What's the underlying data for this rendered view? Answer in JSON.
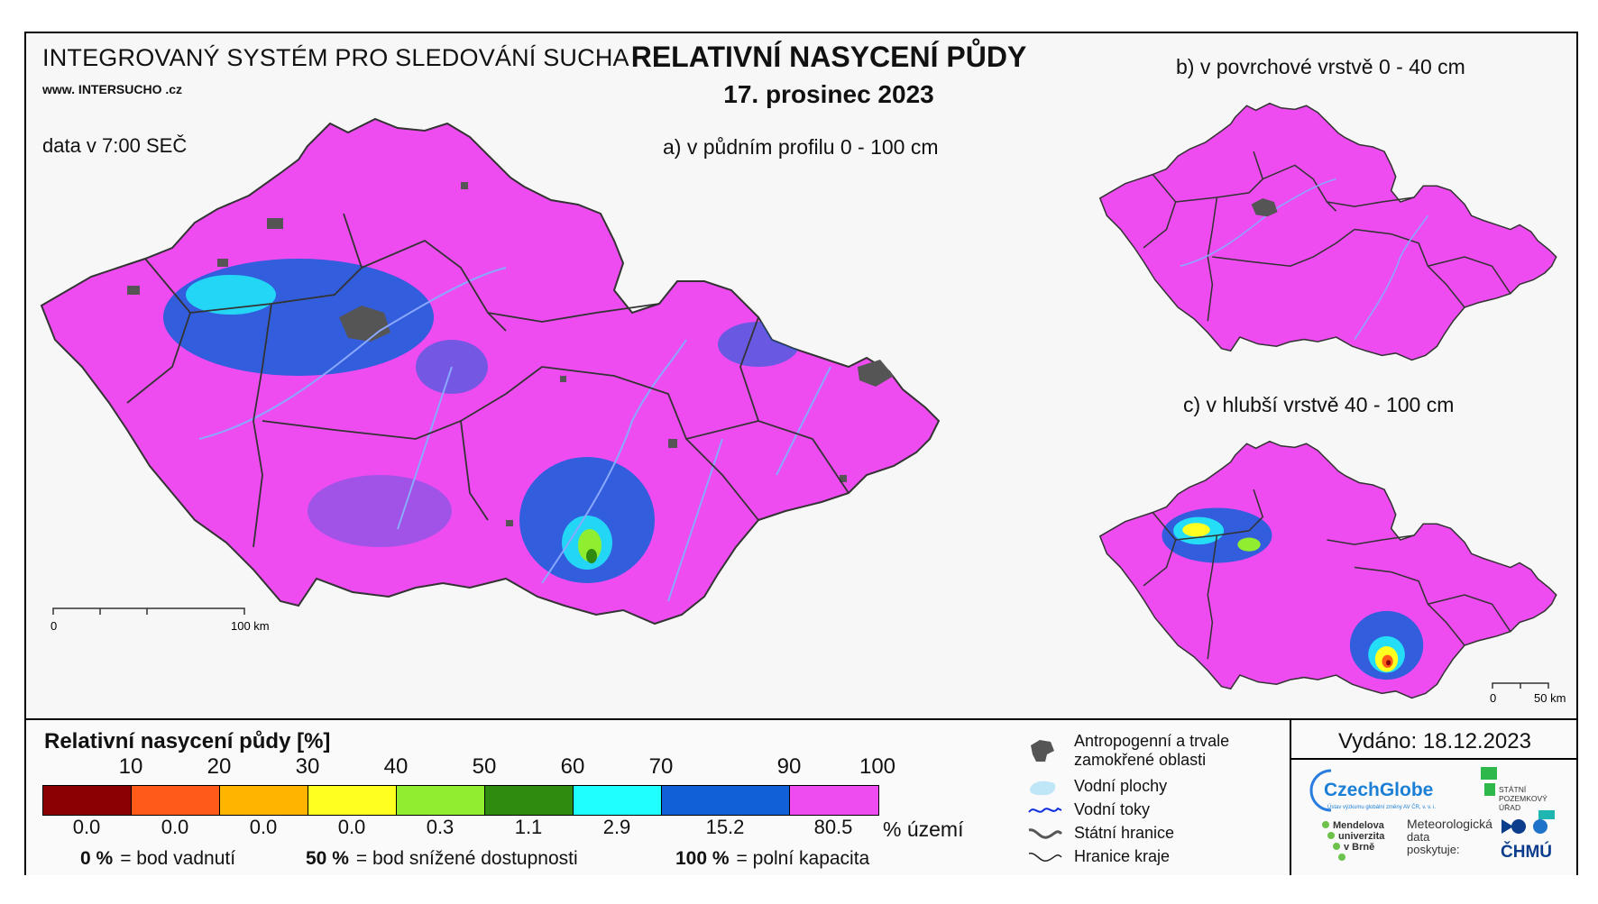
{
  "header": {
    "system_title": "INTEGROVANÝ SYSTÉM PRO SLEDOVÁNÍ SUCHA",
    "website": "www. INTERSUCHO .cz",
    "data_time": "data v 7:00 SEČ",
    "main_title": "RELATIVNÍ NASYCENÍ PŮDY",
    "main_date": "17. prosinec 2023"
  },
  "maps": {
    "profile": {
      "caption": "a) v půdním profilu 0 - 100 cm",
      "scale_start": "0",
      "scale_end": "100 km"
    },
    "surface": {
      "caption": "b) v povrchové vrstvě 0 - 40 cm"
    },
    "deep": {
      "caption": "c) v hlubší vrstvě 40 - 100 cm",
      "scale_start": "0",
      "scale_end": "50 km"
    }
  },
  "legend": {
    "title": "Relativní nasycení půdy [%]",
    "ticks": [
      "10",
      "20",
      "30",
      "40",
      "50",
      "60",
      "70",
      "90",
      "100"
    ],
    "classes": [
      {
        "color": "#8b0000",
        "share": "0.0"
      },
      {
        "color": "#ff5a1a",
        "share": "0.0"
      },
      {
        "color": "#ffb400",
        "share": "0.0"
      },
      {
        "color": "#ffff20",
        "share": "0.0"
      },
      {
        "color": "#90ee30",
        "share": "0.3"
      },
      {
        "color": "#2e8b10",
        "share": "1.1"
      },
      {
        "color": "#20ffff",
        "share": "2.9"
      },
      {
        "color": "#1060d8",
        "share": "15.2"
      },
      {
        "color": "#ee4cf0",
        "share": "80.5"
      }
    ],
    "share_unit": "% území",
    "notes": [
      {
        "value": "0 %",
        "text": "= bod vadnutí"
      },
      {
        "value": "50 %",
        "text": "= bod snížené dostupnosti"
      },
      {
        "value": "100 %",
        "text": "= polní kapacita"
      }
    ]
  },
  "symbology": {
    "anthropogenic": "Antropogenní a trvale zamokřené oblasti",
    "water_bodies": "Vodní plochy",
    "rivers": "Vodní toky",
    "state_border": "Státní hranice",
    "region_border": "Hranice kraje"
  },
  "issued": "Vydáno: 18.12.2023",
  "logos": {
    "czechglobe": "CzechGlobe",
    "czechglobe_sub": "Ústav výzkumu globální změny AV ČR, v. v. i.",
    "spu": [
      "STÁTNÍ",
      "POZEMKOVÝ",
      "ÚŘAD"
    ],
    "mendel": [
      "Mendelova",
      "univerzita",
      "v Brně"
    ],
    "meteo": [
      "Meteorologická",
      "data",
      "poskytuje:"
    ],
    "chmu": "ČHMÚ"
  },
  "colors": {
    "frame_bg": "#f7f7f7",
    "country_fill": "#ee4cf0",
    "wet_fill": "#1060d8",
    "anthropogenic": "#555555",
    "river": "#8aa8ff",
    "border": "#333333"
  }
}
